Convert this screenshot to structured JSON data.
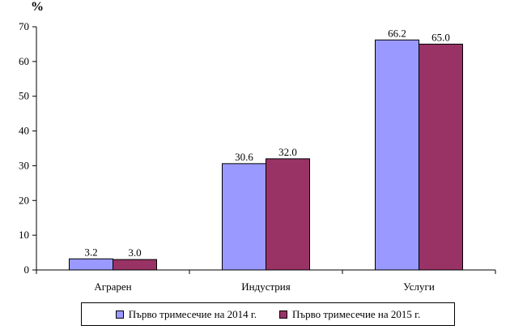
{
  "chart_data": {
    "type": "bar",
    "categories": [
      "Аграрен",
      "Индустрия",
      "Услуги"
    ],
    "series": [
      {
        "name": "Първо тримесечие на 2014 г.",
        "values": [
          3.2,
          30.6,
          66.2
        ],
        "color": "#9999FF",
        "labels": [
          "3.2",
          "30.6",
          "66.2"
        ]
      },
      {
        "name": "Първо тримесечие на 2015 г.",
        "values": [
          3.0,
          32.0,
          65.0
        ],
        "color": "#993366",
        "labels": [
          "3.0",
          "32.0",
          "65.0"
        ]
      }
    ],
    "yunit": "%",
    "ylim": [
      0,
      70
    ],
    "yticks": [
      "0",
      "10",
      "20",
      "30",
      "40",
      "50",
      "60",
      "70"
    ],
    "grid": false,
    "legend_position": "bottom"
  }
}
